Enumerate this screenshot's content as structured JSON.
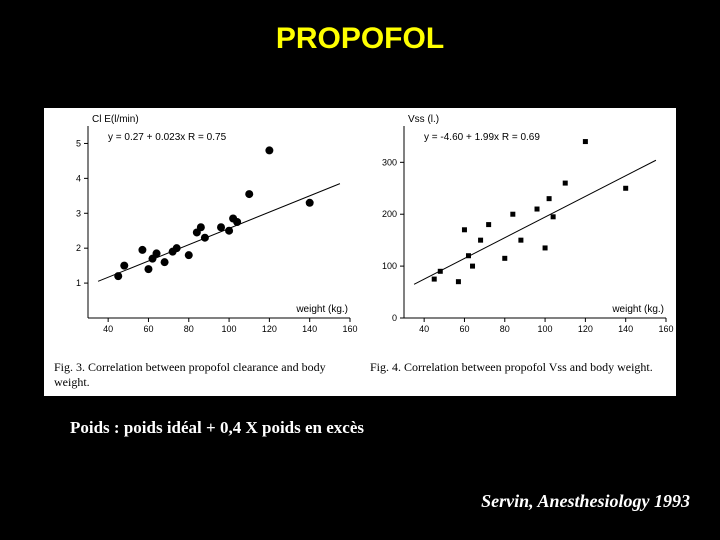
{
  "title": {
    "text": "PROPOFOL",
    "color": "#ffff00",
    "fontsize": 30
  },
  "panel": {
    "background": "#ffffff"
  },
  "formula": {
    "text": "Poids : poids idéal + 0,4 X poids en excès",
    "fontsize": 17
  },
  "citation": {
    "text": "Servin, Anesthesiology 1993",
    "fontsize": 18
  },
  "chart_left": {
    "type": "scatter",
    "ylabel": "Cl E(l/min)",
    "equation": "y = 0.27 + 0.023x   R = 0.75",
    "xlabel": "weight (kg.)",
    "xlim": [
      30,
      160
    ],
    "ylim": [
      0,
      5.5
    ],
    "xticks": [
      40,
      60,
      80,
      100,
      120,
      140,
      160
    ],
    "yticks": [
      1,
      2,
      3,
      4,
      5
    ],
    "reg_line": {
      "x1": 35,
      "y1": 1.05,
      "x2": 155,
      "y2": 3.85
    },
    "points": [
      {
        "x": 45,
        "y": 1.2
      },
      {
        "x": 48,
        "y": 1.5
      },
      {
        "x": 57,
        "y": 1.95
      },
      {
        "x": 60,
        "y": 1.4
      },
      {
        "x": 62,
        "y": 1.7
      },
      {
        "x": 64,
        "y": 1.85
      },
      {
        "x": 68,
        "y": 1.6
      },
      {
        "x": 72,
        "y": 1.9
      },
      {
        "x": 74,
        "y": 2.0
      },
      {
        "x": 80,
        "y": 1.8
      },
      {
        "x": 84,
        "y": 2.45
      },
      {
        "x": 86,
        "y": 2.6
      },
      {
        "x": 88,
        "y": 2.3
      },
      {
        "x": 96,
        "y": 2.6
      },
      {
        "x": 100,
        "y": 2.5
      },
      {
        "x": 102,
        "y": 2.85
      },
      {
        "x": 104,
        "y": 2.75
      },
      {
        "x": 110,
        "y": 3.55
      },
      {
        "x": 120,
        "y": 4.8
      },
      {
        "x": 140,
        "y": 3.3
      }
    ],
    "marker": "circle",
    "marker_size": 4,
    "marker_color": "#000000",
    "caption": "Fig. 3. Correlation between propofol clearance and body weight.",
    "label_fontsize": 10,
    "tick_fontsize": 9
  },
  "chart_right": {
    "type": "scatter",
    "ylabel": "Vss (l.)",
    "equation": "y = -4.60 + 1.99x   R = 0.69",
    "xlabel": "weight (kg.)",
    "xlim": [
      30,
      160
    ],
    "ylim": [
      0,
      370
    ],
    "xticks": [
      40,
      60,
      80,
      100,
      120,
      140,
      160
    ],
    "yticks": [
      0,
      100,
      200,
      300
    ],
    "reg_line": {
      "x1": 35,
      "y1": 65,
      "x2": 155,
      "y2": 304
    },
    "points": [
      {
        "x": 45,
        "y": 75
      },
      {
        "x": 48,
        "y": 90
      },
      {
        "x": 57,
        "y": 70
      },
      {
        "x": 60,
        "y": 170
      },
      {
        "x": 62,
        "y": 120
      },
      {
        "x": 64,
        "y": 100
      },
      {
        "x": 68,
        "y": 150
      },
      {
        "x": 72,
        "y": 180
      },
      {
        "x": 80,
        "y": 115
      },
      {
        "x": 84,
        "y": 200
      },
      {
        "x": 88,
        "y": 150
      },
      {
        "x": 96,
        "y": 210
      },
      {
        "x": 100,
        "y": 135
      },
      {
        "x": 102,
        "y": 230
      },
      {
        "x": 104,
        "y": 195
      },
      {
        "x": 110,
        "y": 260
      },
      {
        "x": 120,
        "y": 340
      },
      {
        "x": 140,
        "y": 250
      }
    ],
    "marker": "square",
    "marker_size": 5,
    "marker_color": "#000000",
    "caption": "Fig. 4. Correlation between propofol Vss and body weight.",
    "label_fontsize": 10,
    "tick_fontsize": 9
  }
}
